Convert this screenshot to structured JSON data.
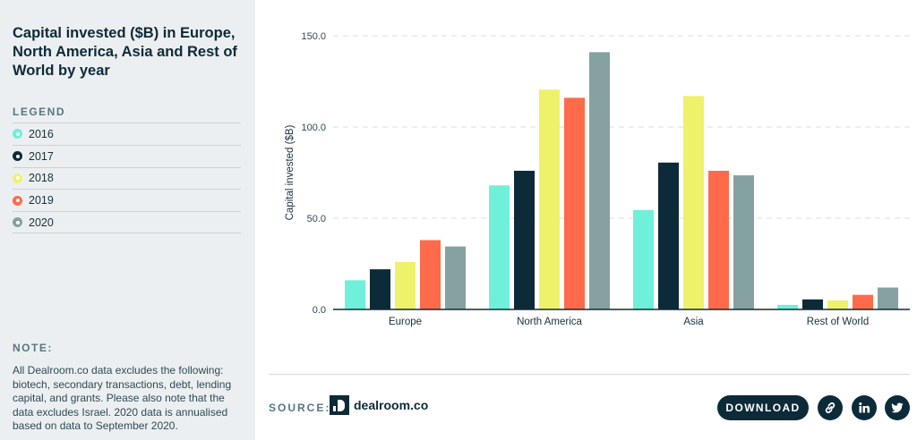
{
  "sidebar": {
    "title": "Capital invested ($B) in Europe, North America, Asia and Rest of World by year",
    "legend_heading": "LEGEND",
    "legend": [
      {
        "label": "2016",
        "color": "#6ff0d9"
      },
      {
        "label": "2017",
        "color": "#0d2a38"
      },
      {
        "label": "2018",
        "color": "#eef26a"
      },
      {
        "label": "2019",
        "color": "#ff6a4a"
      },
      {
        "label": "2020",
        "color": "#85a1a1"
      }
    ],
    "note_heading": "NOTE:",
    "note_text": "All Dealroom.co data excludes the following: biotech, secondary transactions, debt, lending capital, and grants. Please also note that the data excludes Israel. 2020 data is annualised based on data to September 2020."
  },
  "chart_data": {
    "type": "bar",
    "title": "Capital invested ($B) in Europe, North America, Asia and Rest of World by year",
    "ylabel": "Capital invested ($B)",
    "xlabel": "",
    "categories": [
      "Europe",
      "North America",
      "Asia",
      "Rest of World"
    ],
    "series": [
      {
        "name": "2016",
        "color": "#6ff0d9",
        "values": [
          16,
          68,
          54.5,
          2.5
        ]
      },
      {
        "name": "2017",
        "color": "#0d2a38",
        "values": [
          22,
          76,
          80.5,
          5.5
        ]
      },
      {
        "name": "2018",
        "color": "#eef26a",
        "values": [
          26,
          120.5,
          117,
          5
        ]
      },
      {
        "name": "2019",
        "color": "#ff6a4a",
        "values": [
          38,
          116,
          76,
          8
        ]
      },
      {
        "name": "2020",
        "color": "#85a1a1",
        "values": [
          34.5,
          141,
          73.5,
          12
        ]
      }
    ],
    "ylim": [
      0,
      150
    ],
    "yticks": [
      "0.0",
      "50.0",
      "100.0",
      "150.0"
    ],
    "ytick_values": [
      0,
      50,
      100,
      150
    ],
    "grid": true,
    "legend_position": "left-sidebar"
  },
  "footer": {
    "source_label": "SOURCE:",
    "source_name": "dealroom.co",
    "download_label": "DOWNLOAD",
    "share_icons": [
      "link-icon",
      "linkedin-icon",
      "twitter-icon"
    ]
  }
}
